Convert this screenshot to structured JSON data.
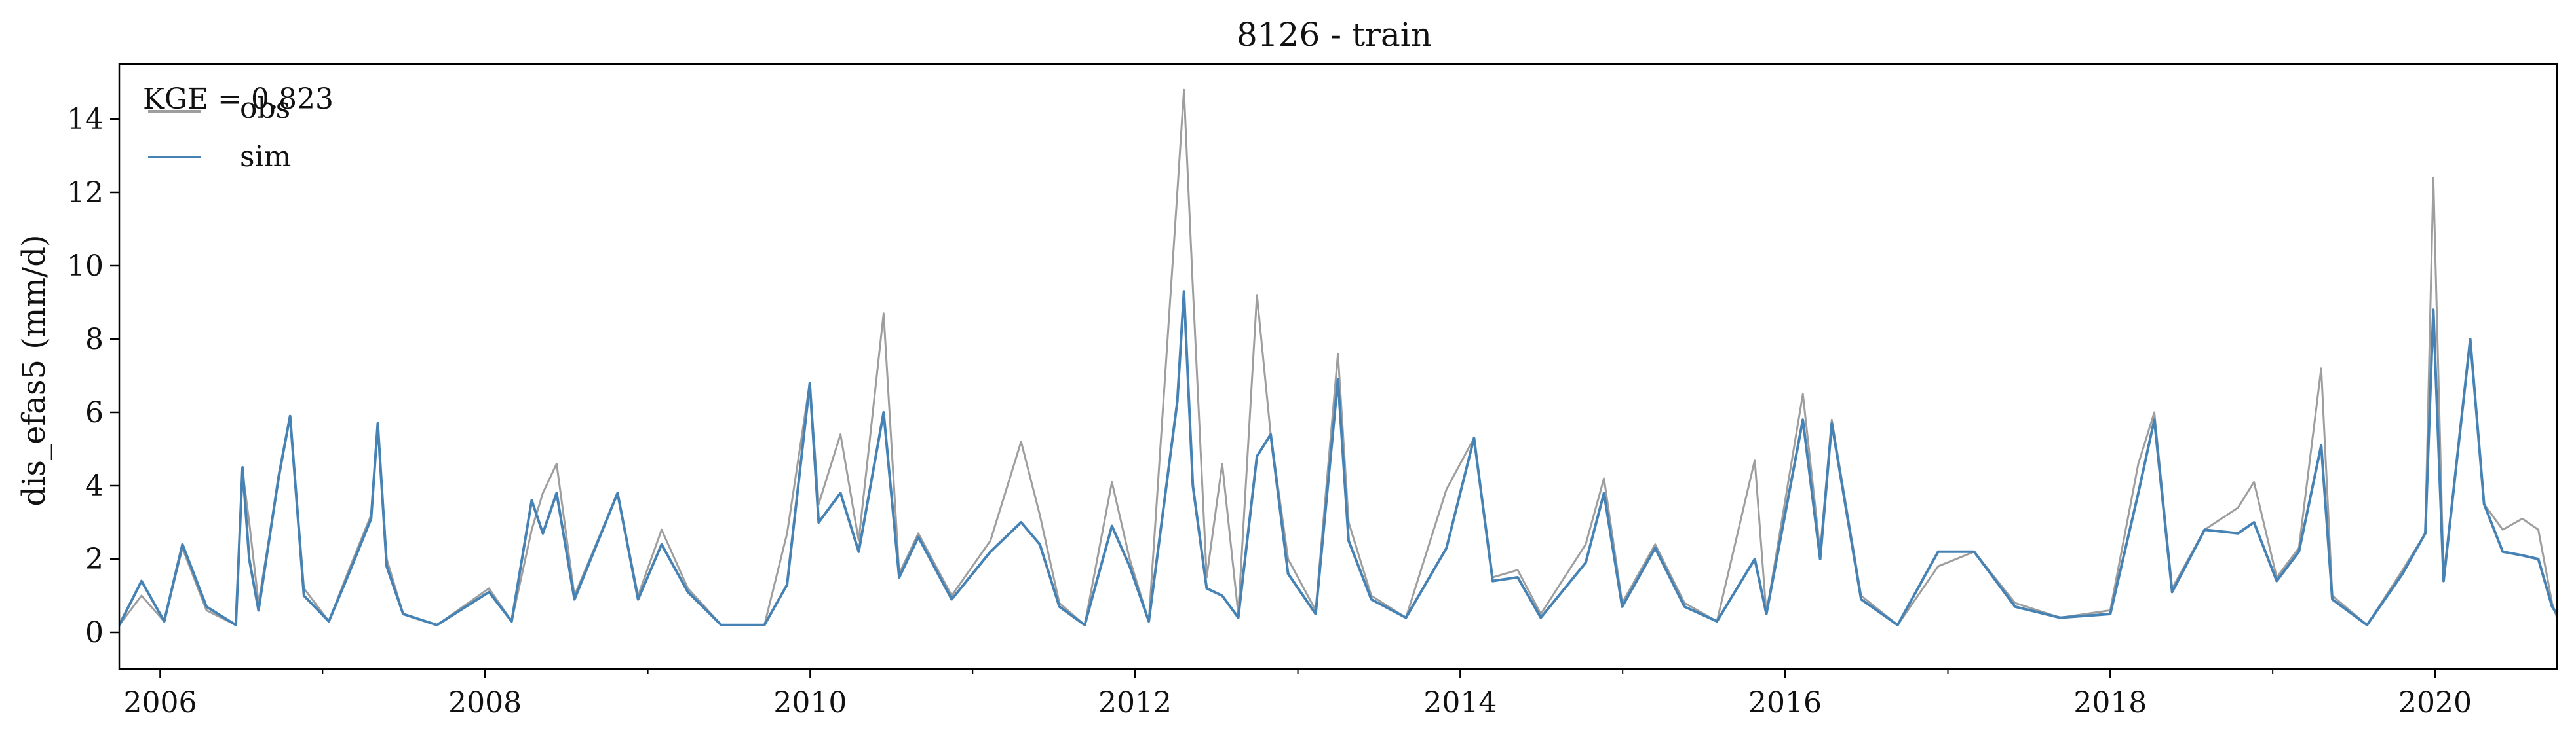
{
  "chart_data": {
    "type": "line",
    "title": "8126 - train",
    "xlabel": "",
    "ylabel": "dis_efas5 (mm/d)",
    "x_range": [
      "2005-10-01",
      "2020-10-01"
    ],
    "ylim": [
      -1.0,
      15.5
    ],
    "grid": false,
    "legend_placement": "top-left",
    "annotation": "KGE = 0.823",
    "x_ticks": [
      "2006",
      "2008",
      "2010",
      "2012",
      "2014",
      "2016",
      "2018",
      "2020"
    ],
    "y_ticks": [
      "0",
      "2",
      "4",
      "6",
      "8",
      "10",
      "12",
      "14"
    ],
    "series": [
      {
        "name": "obs",
        "color": "#9e9e9e",
        "points": [
          [
            "2005-10-01",
            0.2
          ],
          [
            "2005-11-20",
            1.0
          ],
          [
            "2006-01-10",
            0.3
          ],
          [
            "2006-02-20",
            2.3
          ],
          [
            "2006-04-15",
            0.6
          ],
          [
            "2006-06-20",
            0.2
          ],
          [
            "2006-07-05",
            4.4
          ],
          [
            "2006-07-20",
            3.0
          ],
          [
            "2006-08-10",
            0.8
          ],
          [
            "2006-09-25",
            4.2
          ],
          [
            "2006-10-20",
            5.9
          ],
          [
            "2006-11-20",
            1.2
          ],
          [
            "2007-01-15",
            0.3
          ],
          [
            "2007-03-01",
            1.7
          ],
          [
            "2007-04-20",
            3.2
          ],
          [
            "2007-05-05",
            5.7
          ],
          [
            "2007-05-25",
            2.0
          ],
          [
            "2007-07-01",
            0.5
          ],
          [
            "2007-09-15",
            0.2
          ],
          [
            "2008-01-10",
            1.2
          ],
          [
            "2008-03-01",
            0.3
          ],
          [
            "2008-04-15",
            2.8
          ],
          [
            "2008-05-10",
            3.8
          ],
          [
            "2008-06-10",
            4.6
          ],
          [
            "2008-07-20",
            1.0
          ],
          [
            "2008-10-25",
            3.8
          ],
          [
            "2008-12-10",
            1.0
          ],
          [
            "2009-02-01",
            2.8
          ],
          [
            "2009-04-01",
            1.2
          ],
          [
            "2009-06-15",
            0.2
          ],
          [
            "2009-09-20",
            0.2
          ],
          [
            "2009-11-10",
            2.7
          ],
          [
            "2009-12-31",
            6.8
          ],
          [
            "2010-01-20",
            3.5
          ],
          [
            "2010-03-10",
            5.4
          ],
          [
            "2010-04-20",
            2.5
          ],
          [
            "2010-06-15",
            8.7
          ],
          [
            "2010-07-20",
            1.6
          ],
          [
            "2010-09-01",
            2.7
          ],
          [
            "2010-11-15",
            1.0
          ],
          [
            "2011-02-10",
            2.5
          ],
          [
            "2011-04-20",
            5.2
          ],
          [
            "2011-06-01",
            3.2
          ],
          [
            "2011-07-15",
            0.8
          ],
          [
            "2011-09-10",
            0.2
          ],
          [
            "2011-11-10",
            4.1
          ],
          [
            "2011-12-20",
            2.0
          ],
          [
            "2012-02-01",
            0.3
          ],
          [
            "2012-04-05",
            12.0
          ],
          [
            "2012-04-20",
            14.8
          ],
          [
            "2012-05-10",
            9.4
          ],
          [
            "2012-06-10",
            1.5
          ],
          [
            "2012-07-15",
            4.6
          ],
          [
            "2012-08-20",
            0.5
          ],
          [
            "2012-10-01",
            9.2
          ],
          [
            "2012-11-01",
            5.4
          ],
          [
            "2012-12-10",
            2.0
          ],
          [
            "2013-02-10",
            0.6
          ],
          [
            "2013-04-01",
            7.6
          ],
          [
            "2013-04-25",
            3.0
          ],
          [
            "2013-06-15",
            1.0
          ],
          [
            "2013-09-01",
            0.4
          ],
          [
            "2013-12-01",
            3.9
          ],
          [
            "2014-02-01",
            5.3
          ],
          [
            "2014-03-15",
            1.5
          ],
          [
            "2014-05-10",
            1.7
          ],
          [
            "2014-07-01",
            0.5
          ],
          [
            "2014-10-10",
            2.4
          ],
          [
            "2014-11-20",
            4.2
          ],
          [
            "2014-12-31",
            0.8
          ],
          [
            "2015-03-15",
            2.4
          ],
          [
            "2015-05-20",
            0.8
          ],
          [
            "2015-08-01",
            0.3
          ],
          [
            "2015-10-25",
            4.7
          ],
          [
            "2015-11-20",
            0.5
          ],
          [
            "2016-02-10",
            6.5
          ],
          [
            "2016-03-20",
            2.2
          ],
          [
            "2016-04-15",
            5.8
          ],
          [
            "2016-06-20",
            1.0
          ],
          [
            "2016-09-10",
            0.2
          ],
          [
            "2016-12-10",
            1.8
          ],
          [
            "2017-03-01",
            2.2
          ],
          [
            "2017-06-01",
            0.8
          ],
          [
            "2017-09-10",
            0.4
          ],
          [
            "2018-01-01",
            0.6
          ],
          [
            "2018-03-05",
            4.6
          ],
          [
            "2018-04-10",
            6.0
          ],
          [
            "2018-05-20",
            1.2
          ],
          [
            "2018-08-01",
            2.8
          ],
          [
            "2018-10-15",
            3.4
          ],
          [
            "2018-11-20",
            4.1
          ],
          [
            "2019-01-10",
            1.5
          ],
          [
            "2019-03-01",
            2.3
          ],
          [
            "2019-04-20",
            7.2
          ],
          [
            "2019-05-15",
            1.0
          ],
          [
            "2019-08-01",
            0.2
          ],
          [
            "2019-10-20",
            1.7
          ],
          [
            "2019-12-10",
            2.7
          ],
          [
            "2019-12-28",
            12.4
          ],
          [
            "2020-01-20",
            1.5
          ],
          [
            "2020-03-20",
            8.0
          ],
          [
            "2020-04-20",
            3.5
          ],
          [
            "2020-06-01",
            2.8
          ],
          [
            "2020-07-15",
            3.1
          ],
          [
            "2020-08-20",
            2.8
          ],
          [
            "2020-09-20",
            0.8
          ],
          [
            "2020-10-01",
            0.4
          ]
        ]
      },
      {
        "name": "sim",
        "color": "#4682b4",
        "points": [
          [
            "2005-10-01",
            0.2
          ],
          [
            "2005-11-20",
            1.4
          ],
          [
            "2006-01-10",
            0.3
          ],
          [
            "2006-02-20",
            2.4
          ],
          [
            "2006-04-15",
            0.7
          ],
          [
            "2006-06-20",
            0.2
          ],
          [
            "2006-07-05",
            4.5
          ],
          [
            "2006-07-20",
            2.0
          ],
          [
            "2006-08-10",
            0.6
          ],
          [
            "2006-09-25",
            4.3
          ],
          [
            "2006-10-20",
            5.9
          ],
          [
            "2006-11-20",
            1.0
          ],
          [
            "2007-01-15",
            0.3
          ],
          [
            "2007-03-01",
            1.6
          ],
          [
            "2007-04-20",
            3.1
          ],
          [
            "2007-05-05",
            5.7
          ],
          [
            "2007-05-25",
            1.8
          ],
          [
            "2007-07-01",
            0.5
          ],
          [
            "2007-09-15",
            0.2
          ],
          [
            "2008-01-10",
            1.1
          ],
          [
            "2008-03-01",
            0.3
          ],
          [
            "2008-04-15",
            3.6
          ],
          [
            "2008-05-10",
            2.7
          ],
          [
            "2008-06-10",
            3.8
          ],
          [
            "2008-07-20",
            0.9
          ],
          [
            "2008-10-25",
            3.8
          ],
          [
            "2008-12-10",
            0.9
          ],
          [
            "2009-02-01",
            2.4
          ],
          [
            "2009-04-01",
            1.1
          ],
          [
            "2009-06-15",
            0.2
          ],
          [
            "2009-09-20",
            0.2
          ],
          [
            "2009-11-10",
            1.3
          ],
          [
            "2009-12-31",
            6.8
          ],
          [
            "2010-01-20",
            3.0
          ],
          [
            "2010-03-10",
            3.8
          ],
          [
            "2010-04-20",
            2.2
          ],
          [
            "2010-06-15",
            6.0
          ],
          [
            "2010-07-20",
            1.5
          ],
          [
            "2010-09-01",
            2.6
          ],
          [
            "2010-11-15",
            0.9
          ],
          [
            "2011-02-10",
            2.2
          ],
          [
            "2011-04-20",
            3.0
          ],
          [
            "2011-06-01",
            2.4
          ],
          [
            "2011-07-15",
            0.7
          ],
          [
            "2011-09-10",
            0.2
          ],
          [
            "2011-11-10",
            2.9
          ],
          [
            "2011-12-20",
            1.8
          ],
          [
            "2012-02-01",
            0.3
          ],
          [
            "2012-04-05",
            6.3
          ],
          [
            "2012-04-20",
            9.3
          ],
          [
            "2012-05-10",
            4.0
          ],
          [
            "2012-06-10",
            1.2
          ],
          [
            "2012-07-15",
            1.0
          ],
          [
            "2012-08-20",
            0.4
          ],
          [
            "2012-10-01",
            4.8
          ],
          [
            "2012-11-01",
            5.4
          ],
          [
            "2012-12-10",
            1.6
          ],
          [
            "2013-02-10",
            0.5
          ],
          [
            "2013-04-01",
            6.9
          ],
          [
            "2013-04-25",
            2.5
          ],
          [
            "2013-06-15",
            0.9
          ],
          [
            "2013-09-01",
            0.4
          ],
          [
            "2013-12-01",
            2.3
          ],
          [
            "2014-02-01",
            5.3
          ],
          [
            "2014-03-15",
            1.4
          ],
          [
            "2014-05-10",
            1.5
          ],
          [
            "2014-07-01",
            0.4
          ],
          [
            "2014-10-10",
            1.9
          ],
          [
            "2014-11-20",
            3.8
          ],
          [
            "2014-12-31",
            0.7
          ],
          [
            "2015-03-15",
            2.3
          ],
          [
            "2015-05-20",
            0.7
          ],
          [
            "2015-08-01",
            0.3
          ],
          [
            "2015-10-25",
            2.0
          ],
          [
            "2015-11-20",
            0.5
          ],
          [
            "2016-02-10",
            5.8
          ],
          [
            "2016-03-20",
            2.0
          ],
          [
            "2016-04-15",
            5.7
          ],
          [
            "2016-06-20",
            0.9
          ],
          [
            "2016-09-10",
            0.2
          ],
          [
            "2016-12-10",
            2.2
          ],
          [
            "2017-03-01",
            2.2
          ],
          [
            "2017-06-01",
            0.7
          ],
          [
            "2017-09-10",
            0.4
          ],
          [
            "2018-01-01",
            0.5
          ],
          [
            "2018-03-05",
            3.8
          ],
          [
            "2018-04-10",
            5.8
          ],
          [
            "2018-05-20",
            1.1
          ],
          [
            "2018-08-01",
            2.8
          ],
          [
            "2018-10-15",
            2.7
          ],
          [
            "2018-11-20",
            3.0
          ],
          [
            "2019-01-10",
            1.4
          ],
          [
            "2019-03-01",
            2.2
          ],
          [
            "2019-04-20",
            5.1
          ],
          [
            "2019-05-15",
            0.9
          ],
          [
            "2019-08-01",
            0.2
          ],
          [
            "2019-10-20",
            1.6
          ],
          [
            "2019-12-10",
            2.7
          ],
          [
            "2019-12-28",
            8.8
          ],
          [
            "2020-01-20",
            1.4
          ],
          [
            "2020-03-20",
            8.0
          ],
          [
            "2020-04-20",
            3.5
          ],
          [
            "2020-06-01",
            2.2
          ],
          [
            "2020-07-15",
            2.1
          ],
          [
            "2020-08-20",
            2.0
          ],
          [
            "2020-09-20",
            0.7
          ],
          [
            "2020-10-01",
            0.5
          ]
        ]
      }
    ]
  }
}
